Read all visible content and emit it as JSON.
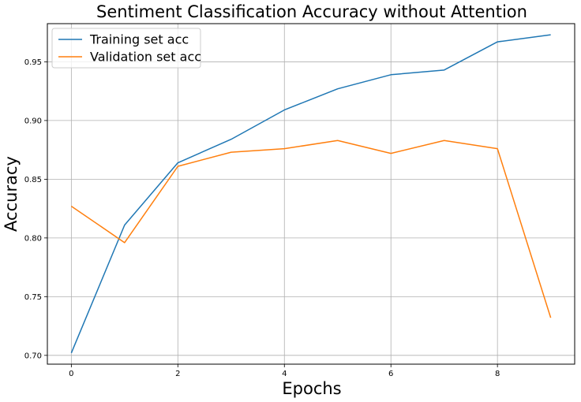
{
  "chart_data": {
    "type": "line",
    "title": "Sentiment Classification Accuracy without Attention",
    "xlabel": "Epochs",
    "ylabel": "Accuracy",
    "x": [
      0,
      1,
      2,
      3,
      4,
      5,
      6,
      7,
      8,
      9
    ],
    "xlim": [
      -0.45,
      9.45
    ],
    "ylim": [
      0.6925,
      0.9825
    ],
    "xticks": [
      0,
      2,
      4,
      6,
      8
    ],
    "yticks": [
      0.7,
      0.75,
      0.8,
      0.85,
      0.9,
      0.95
    ],
    "xtick_labels": [
      "0",
      "2",
      "4",
      "6",
      "8"
    ],
    "ytick_labels": [
      "0.70",
      "0.75",
      "0.80",
      "0.85",
      "0.90",
      "0.95"
    ],
    "grid": true,
    "legend_position": "top-left",
    "series": [
      {
        "name": "Training set acc",
        "color": "#1f77b4",
        "values": [
          0.702,
          0.811,
          0.864,
          0.884,
          0.909,
          0.927,
          0.939,
          0.943,
          0.967,
          0.973
        ]
      },
      {
        "name": "Validation set acc",
        "color": "#ff7f0e",
        "values": [
          0.827,
          0.796,
          0.861,
          0.873,
          0.876,
          0.883,
          0.872,
          0.883,
          0.876,
          0.732
        ]
      }
    ]
  }
}
